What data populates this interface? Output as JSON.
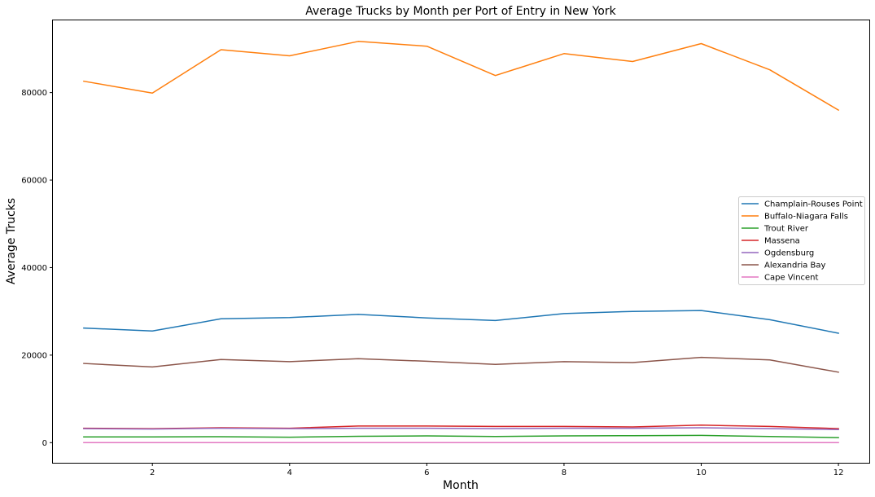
{
  "chart_data": {
    "type": "line",
    "title": "Average Trucks by Month per Port of Entry in New York",
    "xlabel": "Month",
    "ylabel": "Average Trucks",
    "xlim": [
      0.55,
      12.45
    ],
    "ylim": [
      -4600,
      96500
    ],
    "x_ticks": [
      2,
      4,
      6,
      8,
      10,
      12
    ],
    "y_ticks": [
      0,
      20000,
      40000,
      60000,
      80000
    ],
    "grid": false,
    "legend_position": "center-right",
    "x": [
      1,
      2,
      3,
      4,
      5,
      6,
      7,
      8,
      9,
      10,
      11,
      12
    ],
    "series": [
      {
        "name": "Champlain-Rouses Point",
        "color": "#1f77b4",
        "values": [
          26200,
          25500,
          28300,
          28600,
          29300,
          28500,
          27900,
          29500,
          30000,
          30200,
          28100,
          25000
        ]
      },
      {
        "name": "Buffalo-Niagara Falls",
        "color": "#ff7f0e",
        "values": [
          82600,
          79900,
          89800,
          88400,
          91700,
          90600,
          83900,
          88900,
          87100,
          91200,
          85200,
          76000
        ]
      },
      {
        "name": "Trout River",
        "color": "#2ca02c",
        "values": [
          1300,
          1300,
          1350,
          1250,
          1450,
          1550,
          1400,
          1550,
          1600,
          1650,
          1400,
          1150
        ]
      },
      {
        "name": "Massena",
        "color": "#d62728",
        "values": [
          3300,
          3200,
          3400,
          3300,
          3800,
          3800,
          3700,
          3700,
          3600,
          4000,
          3700,
          3200
        ]
      },
      {
        "name": "Ogdensburg",
        "color": "#9467bd",
        "values": [
          3200,
          3100,
          3300,
          3200,
          3300,
          3300,
          3200,
          3300,
          3300,
          3400,
          3200,
          3000
        ]
      },
      {
        "name": "Alexandria Bay",
        "color": "#8c564b",
        "values": [
          18100,
          17300,
          19000,
          18500,
          19200,
          18600,
          17900,
          18500,
          18300,
          19500,
          18900,
          16100
        ]
      },
      {
        "name": "Cape Vincent",
        "color": "#e377c2",
        "values": [
          0,
          0,
          0,
          0,
          0,
          0,
          0,
          0,
          0,
          0,
          0,
          0
        ]
      }
    ]
  }
}
